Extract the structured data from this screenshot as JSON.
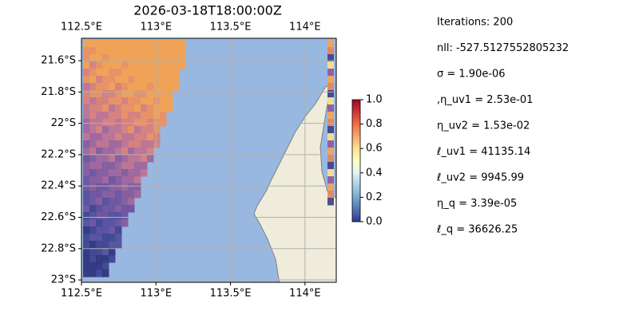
{
  "map": {
    "title": "2026-03-18T18:00:00Z",
    "lon_extent": [
      112.5,
      114.21
    ],
    "lat_extent": [
      -21.457,
      -23.015
    ],
    "lon_ticks": [
      {
        "value": 112.5,
        "label": "112.5°E"
      },
      {
        "value": 113,
        "label": "113°E"
      },
      {
        "value": 113.5,
        "label": "113.5°E"
      },
      {
        "value": 114,
        "label": "114°E"
      }
    ],
    "lat_ticks": [
      {
        "value": -21.6,
        "label": "21.6°S"
      },
      {
        "value": -21.8,
        "label": "21.8°S"
      },
      {
        "value": -22,
        "label": "22°S"
      },
      {
        "value": -22.2,
        "label": "22.2°S"
      },
      {
        "value": -22.4,
        "label": "22.4°S"
      },
      {
        "value": -22.6,
        "label": "22.6°S"
      },
      {
        "value": -22.8,
        "label": "22.8°S"
      },
      {
        "value": -23,
        "label": "23°S"
      }
    ],
    "colorbar": {
      "lim": [
        0,
        1
      ],
      "ticks": [
        {
          "value": 0,
          "label": "0.0"
        },
        {
          "value": 0.2,
          "label": "0.2"
        },
        {
          "value": 0.4,
          "label": "0.4"
        },
        {
          "value": 0.6,
          "label": "0.6"
        },
        {
          "value": 0.8,
          "label": "0.8"
        },
        {
          "value": 1,
          "label": "1.0"
        }
      ]
    },
    "info": [
      "Iterations: 200",
      "nll: -527.5127552805232",
      "σ = 1.90e-06",
      ",η_uv1 = 2.53e-01",
      "η_uv2 = 1.53e-02",
      "ℓ_uv1 = 41135.14",
      "ℓ_uv2 = 9945.99",
      "η_q = 3.39e-05",
      "ℓ_q = 36626.25"
    ]
  }
}
